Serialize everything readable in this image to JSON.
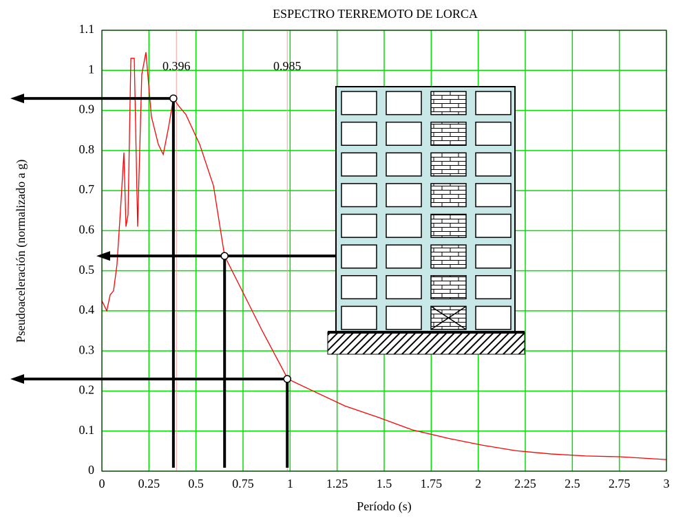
{
  "chart_data": {
    "type": "line",
    "title": "ESPECTRO TERREMOTO DE LORCA",
    "x_label": "Período (s)",
    "y_label": "Pseudoaceleración (normalizado a g)",
    "color": "#ff0000",
    "x": [
      0,
      0.026,
      0.044,
      0.062,
      0.08,
      0.1,
      0.117,
      0.128,
      0.139,
      0.154,
      0.172,
      0.19,
      0.212,
      0.234,
      0.263,
      0.3,
      0.326,
      0.355,
      0.38,
      0.41,
      0.446,
      0.52,
      0.593,
      0.652,
      0.74,
      0.85,
      0.988,
      1.1,
      1.29,
      1.47,
      1.65,
      1.84,
      2.02,
      2.2,
      2.385,
      2.57,
      2.75,
      3
    ],
    "values": [
      0.425,
      0.4,
      0.44,
      0.45,
      0.515,
      0.66,
      0.795,
      0.61,
      0.64,
      1.03,
      1.03,
      0.61,
      0.99,
      1.045,
      0.885,
      0.815,
      0.79,
      0.86,
      0.93,
      0.91,
      0.89,
      0.815,
      0.712,
      0.537,
      0.455,
      0.352,
      0.23,
      0.205,
      0.163,
      0.134,
      0.103,
      0.082,
      0.065,
      0.051,
      0.043,
      0.038,
      0.036,
      0.029
    ],
    "vlines": [
      0.396,
      0.985
    ],
    "markers": {
      "x": [
        0.38,
        0.652,
        0.985
      ],
      "y": [
        0.93,
        0.537,
        0.23
      ]
    },
    "xlim": [
      0,
      3
    ],
    "ylim": [
      0,
      1.1
    ],
    "xticks": [
      0,
      0.25,
      0.5,
      0.75,
      1,
      1.25,
      1.5,
      1.75,
      2,
      2.25,
      2.5,
      2.75,
      3
    ],
    "yticks": [
      0,
      0.1,
      0.2,
      0.3,
      0.4,
      0.5,
      0.6,
      0.7,
      0.8,
      0.9,
      1,
      1.1
    ],
    "grid": true,
    "grid_color": "#00e000"
  }
}
